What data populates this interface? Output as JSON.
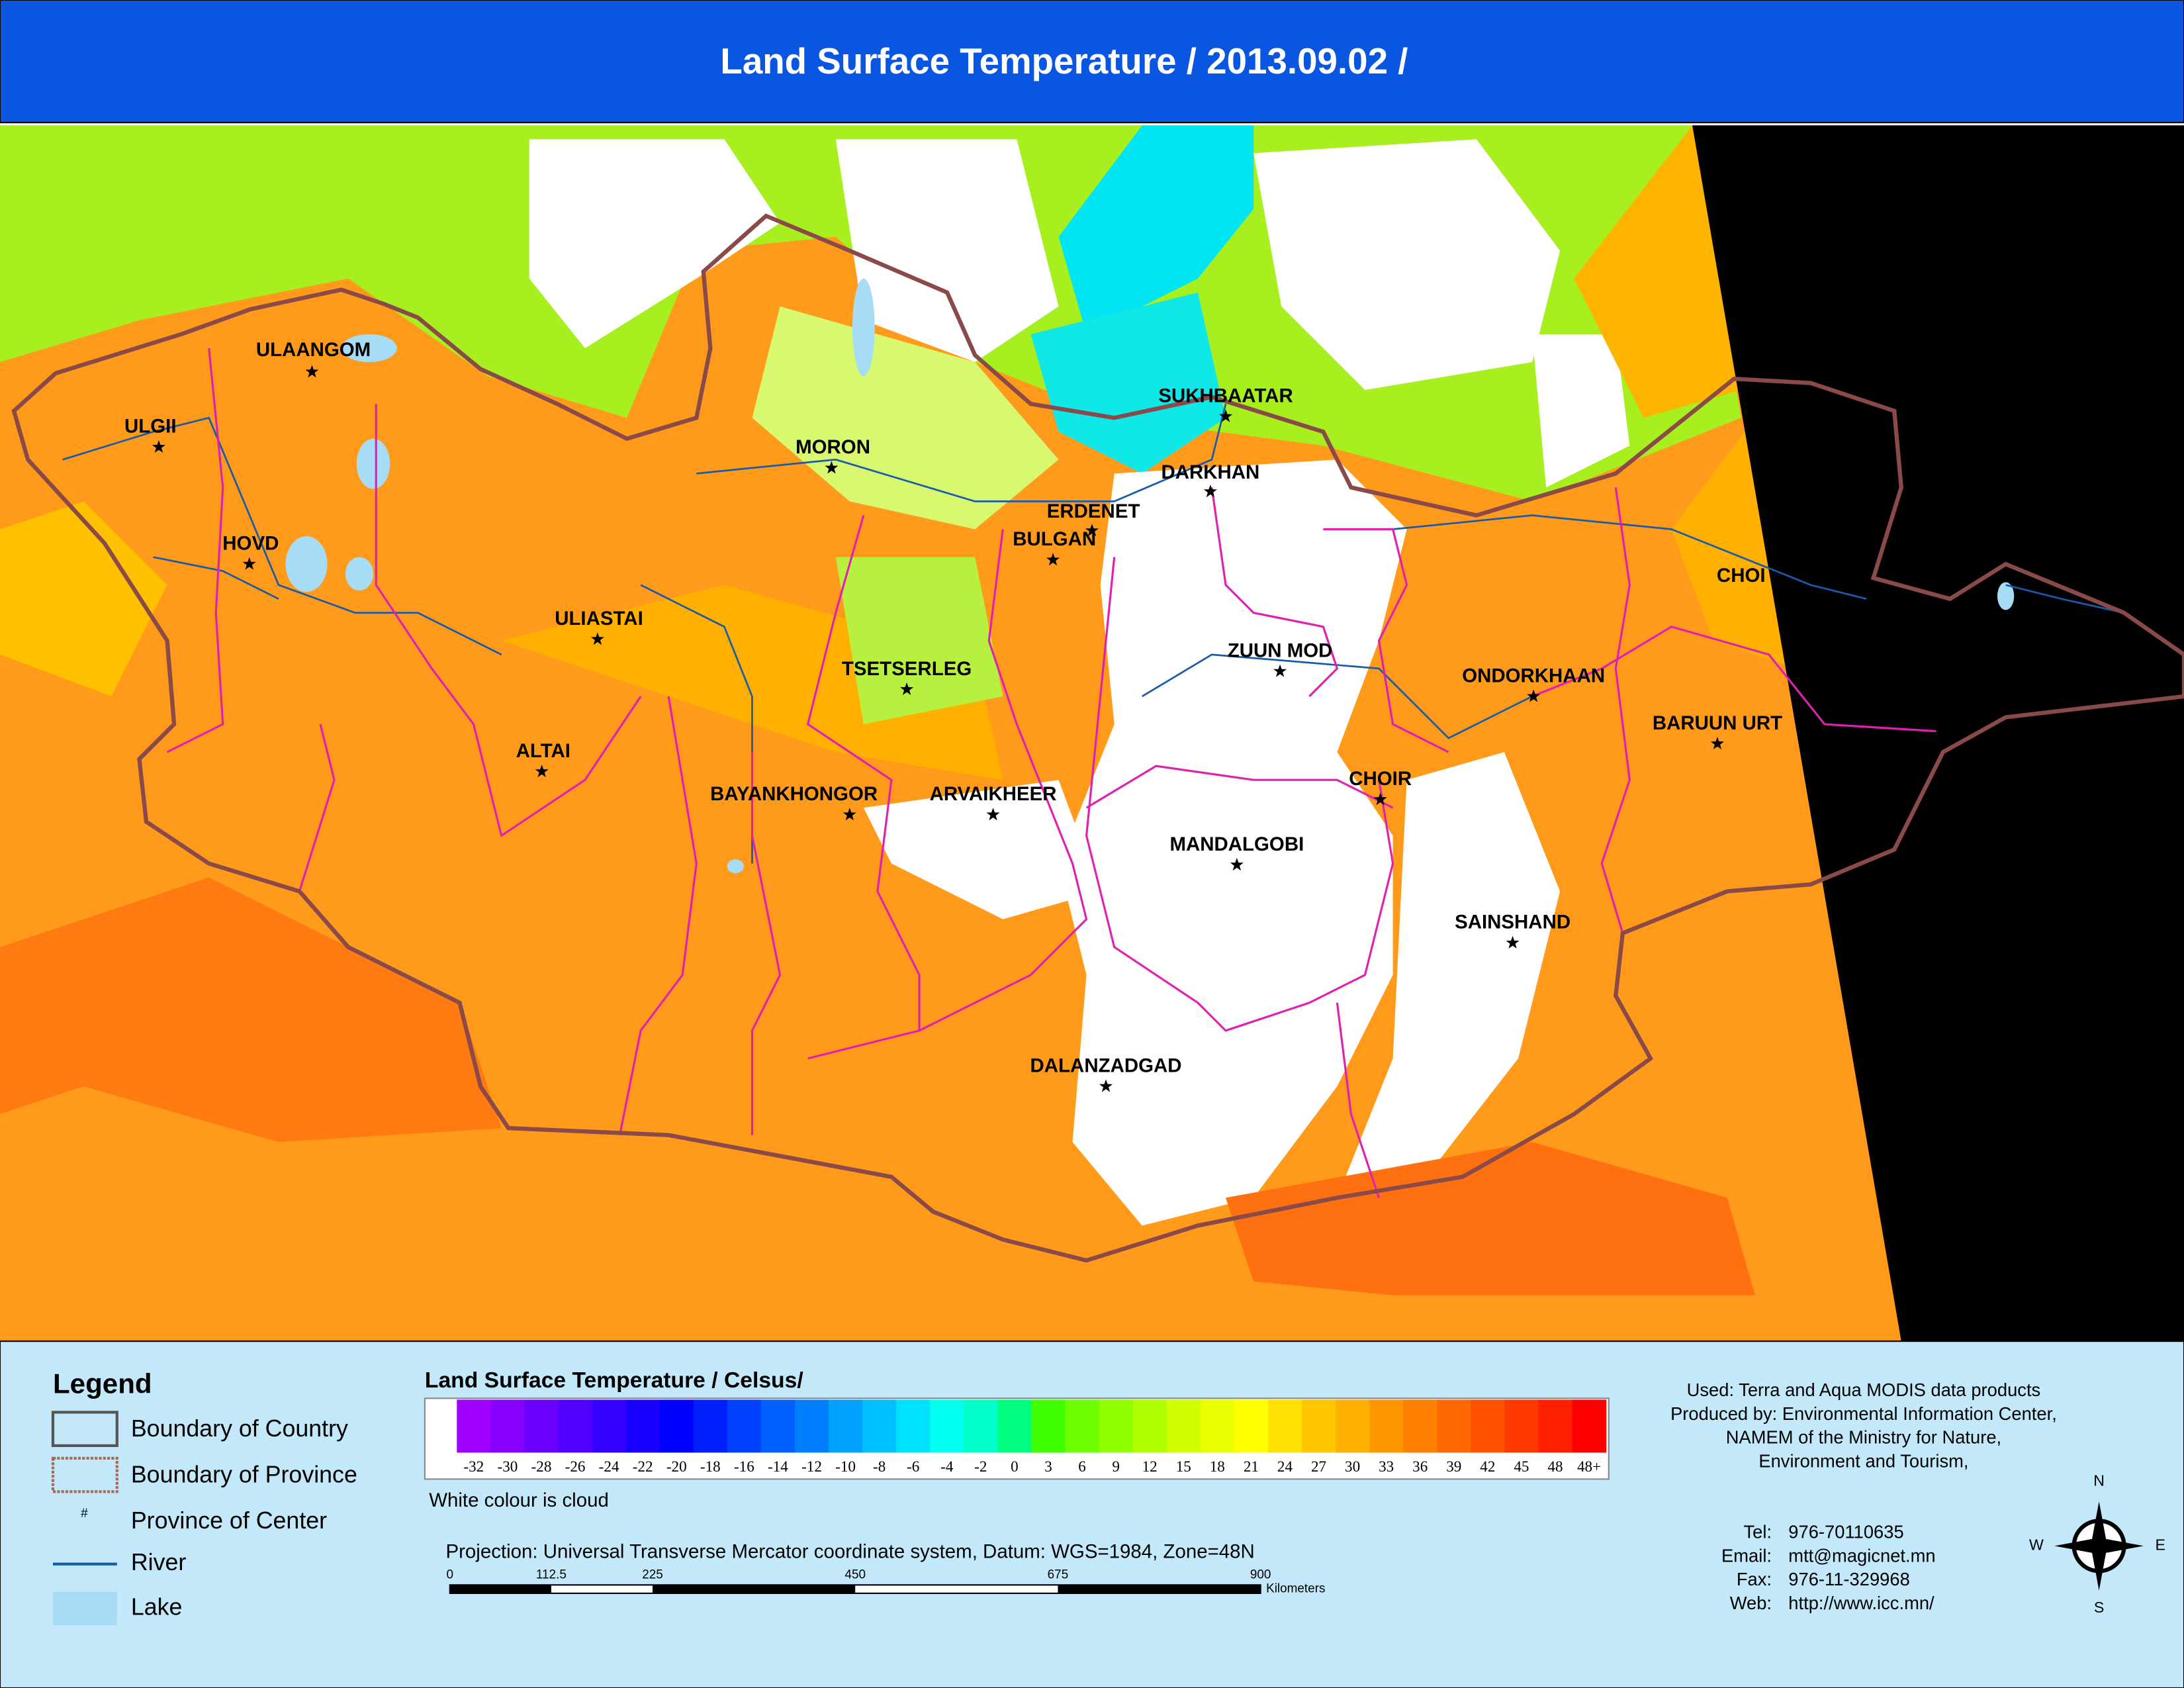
{
  "header": {
    "title": "Land Surface Temperature / 2013.09.02 /"
  },
  "map": {
    "places": [
      "ULAANGOM",
      "ULGII",
      "HOVD",
      "ULIASTAI",
      "ALTAI",
      "MORON",
      "SUKHBAATAR",
      "DARKHAN",
      "ERDENET",
      "BULGAN",
      "TSETSERLEG",
      "BAYANKHONGOR",
      "ARVAIKHEER",
      "ZUUN MOD",
      "ONDORKHAAN",
      "CHOI",
      "BARUUN URT",
      "CHOIR",
      "MANDALGOBI",
      "SAINSHAND",
      "DALANZADGAD"
    ]
  },
  "legend": {
    "title": "Legend",
    "items": [
      "Boundary of Country",
      "Boundary of Province",
      "Province of Center",
      "River",
      "Lake"
    ],
    "symbol": "#"
  },
  "colorbar": {
    "title": "Land Surface Temperature / Celsus/",
    "cloud_color": "#ffffff",
    "colors": [
      "#a000ff",
      "#8800ff",
      "#6c00ff",
      "#5000ff",
      "#3400ff",
      "#1800ff",
      "#0000ff",
      "#0020ff",
      "#0040ff",
      "#0060ff",
      "#0080ff",
      "#00a0ff",
      "#00c0ff",
      "#00e0ff",
      "#00ffee",
      "#00ffc8",
      "#00ff80",
      "#40ff00",
      "#70ff00",
      "#90ff00",
      "#b0ff00",
      "#d0ff00",
      "#e8ff00",
      "#ffff00",
      "#ffe000",
      "#ffc800",
      "#ffb000",
      "#ff9800",
      "#ff8000",
      "#ff6800",
      "#ff5000",
      "#ff3800",
      "#ff2000",
      "#ff0000"
    ],
    "labels": [
      "-32",
      "-30",
      "-28",
      "-26",
      "-24",
      "-22",
      "-20",
      "-18",
      "-16",
      "-14",
      "-12",
      "-10",
      "-8",
      "-6",
      "-4",
      "-2",
      "0",
      "3",
      "6",
      "9",
      "12",
      "15",
      "18",
      "21",
      "24",
      "27",
      "30",
      "33",
      "36",
      "39",
      "42",
      "45",
      "48",
      "48+"
    ],
    "note": "White colour is cloud"
  },
  "projection": "Projection: Universal Transverse Mercator coordinate system, Datum: WGS=1984, Zone=48N",
  "scalebar": {
    "labels": [
      "0",
      "112.5",
      "225",
      "450",
      "675",
      "900"
    ],
    "unit": "Kilometers"
  },
  "credits": {
    "lines": [
      "Used: Terra and Aqua MODIS data products",
      "Produced by: Environmental Information Center,",
      "NAMEM of the Ministry for Nature,",
      "Environment and Tourism,"
    ],
    "contacts": [
      [
        "Tel:",
        "976-70110635"
      ],
      [
        "Email:",
        "mtt@magicnet.mn"
      ],
      [
        "Fax:",
        "976-11-329968"
      ],
      [
        "Web:",
        "http://www.icc.mn/"
      ]
    ]
  },
  "compass": [
    "N",
    "W",
    "E",
    "S"
  ]
}
